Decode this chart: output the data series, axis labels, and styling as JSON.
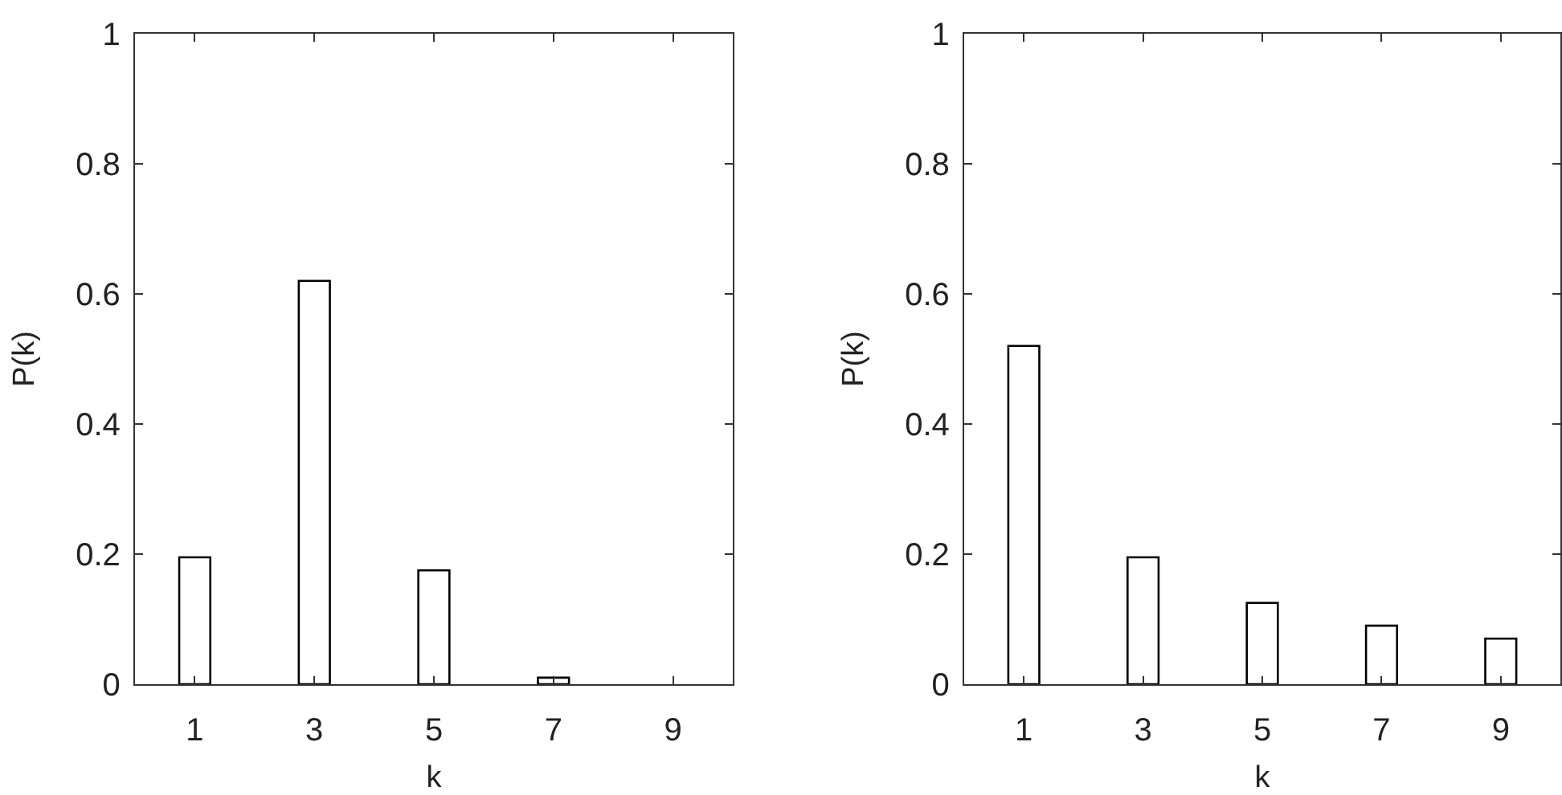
{
  "chart_data": [
    {
      "type": "bar",
      "xlabel": "k",
      "ylabel": "P(k)",
      "x": [
        1,
        3,
        5,
        7
      ],
      "values": [
        0.195,
        0.62,
        0.175,
        0.01
      ],
      "color": "#ffffff",
      "xlim": [
        0,
        10
      ],
      "xticks": [
        1,
        3,
        5,
        7,
        9
      ],
      "ylim": [
        0,
        1
      ],
      "yticks": [
        0,
        0.2,
        0.4,
        0.6,
        0.8,
        1
      ]
    },
    {
      "type": "bar",
      "xlabel": "k",
      "ylabel": "P(k)",
      "x": [
        1,
        3,
        5,
        7,
        9
      ],
      "values": [
        0.52,
        0.195,
        0.125,
        0.09,
        0.07
      ],
      "color": "#ffffff",
      "xlim": [
        0,
        10
      ],
      "xticks": [
        1,
        3,
        5,
        7,
        9
      ],
      "ylim": [
        0,
        1
      ],
      "yticks": [
        0,
        0.2,
        0.4,
        0.6,
        0.8,
        1
      ]
    }
  ]
}
